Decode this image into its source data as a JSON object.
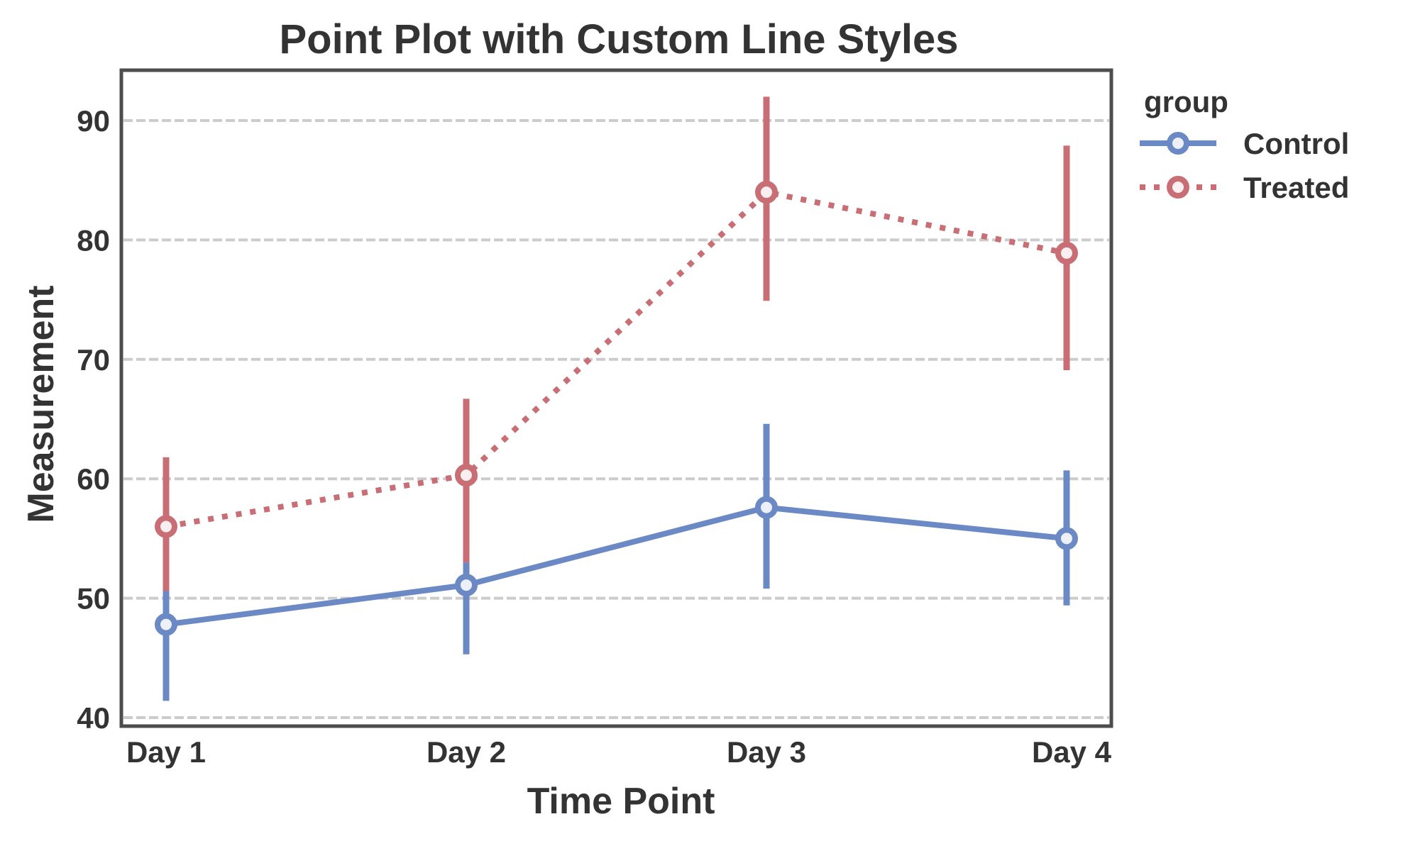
{
  "chart_data": {
    "type": "line",
    "title": "Point Plot with Custom Line Styles",
    "xlabel": "Time Point",
    "ylabel": "Measurement",
    "categories": [
      "Day 1",
      "Day 2",
      "Day 3",
      "Day 4"
    ],
    "ylim": [
      39.5,
      94.4
    ],
    "yticks": [
      40,
      50,
      60,
      70,
      80,
      90
    ],
    "grid": "horizontal-dashed",
    "legend": {
      "title": "group",
      "position": "outside-right-top"
    },
    "series": [
      {
        "name": "Control",
        "color": "#6b89c4",
        "linestyle": "solid",
        "marker": "o",
        "values": [
          47.8,
          51.1,
          57.6,
          55.0
        ],
        "ci_low": [
          41.4,
          45.3,
          50.8,
          49.4
        ],
        "ci_high": [
          50.6,
          53.0,
          64.6,
          60.7
        ]
      },
      {
        "name": "Treated",
        "color": "#c96e74",
        "linestyle": "dotted",
        "marker": "o",
        "values": [
          56.0,
          60.3,
          84.0,
          78.9
        ],
        "ci_low": [
          50.6,
          53.0,
          74.9,
          69.1
        ],
        "ci_high": [
          61.8,
          66.7,
          92.0,
          87.9
        ]
      }
    ]
  }
}
